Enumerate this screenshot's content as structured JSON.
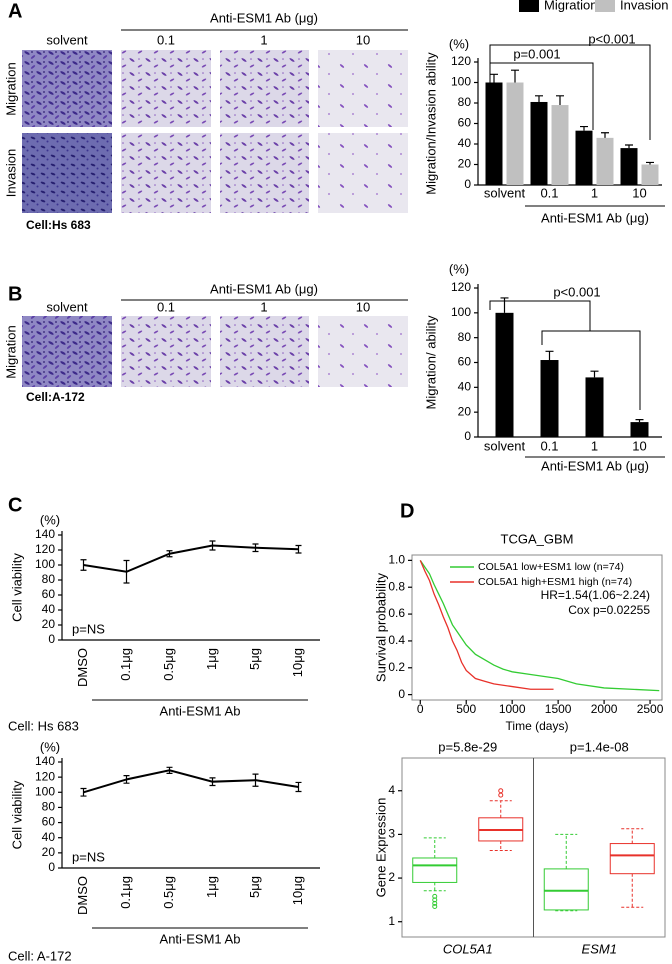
{
  "figure": {
    "panel_labels": [
      "A",
      "B",
      "C",
      "D"
    ],
    "a": {
      "header": "Anti-ESM1 Ab (μg)",
      "columns": [
        "solvent",
        "0.1",
        "1",
        "10"
      ],
      "rows": [
        "Migration",
        "Invasion"
      ],
      "cell": "Cell:Hs 683"
    },
    "b": {
      "header": "Anti-ESM1 Ab (μg)",
      "columns": [
        "solvent",
        "0.1",
        "1",
        "10"
      ],
      "rows": [
        "Migration"
      ],
      "cell": "Cell:A-172"
    }
  },
  "chart_data": [
    {
      "type": "bar",
      "unit": "(%)",
      "ylabel": "Migration/Invasion ability",
      "xlabel": "Anti-ESM1 Ab (μg)",
      "categories": [
        "solvent",
        "0.1",
        "1",
        "10"
      ],
      "series": [
        {
          "name": "Migration",
          "color": "#000000",
          "values": [
            100,
            81,
            53,
            36
          ],
          "errors": [
            8,
            6,
            4,
            3
          ]
        },
        {
          "name": "Invasion",
          "color": "#c0c0c0",
          "values": [
            100,
            78,
            46,
            20
          ],
          "errors": [
            12,
            9,
            5,
            2
          ]
        }
      ],
      "ylim": [
        0,
        120
      ],
      "yticks": [
        0,
        20,
        40,
        60,
        80,
        100,
        120
      ],
      "annotations": [
        "p=0.001",
        "p<0.001"
      ],
      "legend": "top"
    },
    {
      "type": "bar",
      "unit": "(%)",
      "ylabel": "Migration/ ability",
      "xlabel": "Anti-ESM1 Ab (μg)",
      "categories": [
        "solvent",
        "0.1",
        "1",
        "10"
      ],
      "series": [
        {
          "color": "#000000",
          "values": [
            100,
            62,
            48,
            12
          ],
          "errors": [
            12,
            7,
            5,
            2
          ]
        }
      ],
      "ylim": [
        0,
        120
      ],
      "yticks": [
        0,
        20,
        40,
        60,
        80,
        100,
        120
      ],
      "annotations": [
        "p<0.001"
      ]
    },
    {
      "type": "line",
      "unit": "(%)",
      "ylabel": "Cell viability",
      "xlabel": "Anti-ESM1 Ab",
      "cell_label": "Cell: Hs 683",
      "categories": [
        "DMSO",
        "0.1μg",
        "0.5μg",
        "1μg",
        "5μg",
        "10μg"
      ],
      "series": [
        {
          "color": "#000000",
          "values": [
            100,
            91,
            115,
            126,
            123,
            121
          ],
          "errors": [
            7,
            15,
            4,
            6,
            5,
            5
          ]
        }
      ],
      "ylim": [
        0,
        140
      ],
      "yticks": [
        0,
        20,
        40,
        60,
        80,
        100,
        120,
        140
      ],
      "annotations": [
        "p=NS"
      ]
    },
    {
      "type": "line",
      "unit": "(%)",
      "ylabel": "Cell viability",
      "xlabel": "Anti-ESM1 Ab",
      "cell_label": "Cell: A-172",
      "categories": [
        "DMSO",
        "0.1μg",
        "0.5μg",
        "1μg",
        "5μg",
        "10μg"
      ],
      "series": [
        {
          "color": "#000000",
          "values": [
            100,
            117,
            129,
            114,
            116,
            107
          ],
          "errors": [
            5,
            5,
            4,
            5,
            8,
            6
          ]
        }
      ],
      "ylim": [
        0,
        140
      ],
      "yticks": [
        0,
        20,
        40,
        60,
        80,
        100,
        120,
        140
      ],
      "annotations": [
        "p=NS"
      ]
    },
    {
      "type": "survival",
      "title": "TCGA_GBM",
      "xlabel": "Time (days)",
      "ylabel": "Survival probability",
      "series": [
        {
          "name": "COL5A1 low+ESM1 low (n=74)",
          "color": "#33cc33",
          "x": [
            0,
            50,
            100,
            150,
            200,
            250,
            300,
            350,
            400,
            450,
            500,
            600,
            700,
            800,
            900,
            1000,
            1200,
            1500,
            1700,
            2000,
            2600
          ],
          "values": [
            1,
            0.95,
            0.9,
            0.82,
            0.75,
            0.68,
            0.6,
            0.52,
            0.47,
            0.42,
            0.37,
            0.3,
            0.26,
            0.22,
            0.19,
            0.17,
            0.15,
            0.12,
            0.08,
            0.05,
            0.03
          ]
        },
        {
          "name": "COL5A1 high+ESM1 high (n=74)",
          "color": "#e8312a",
          "x": [
            0,
            50,
            100,
            150,
            200,
            250,
            300,
            350,
            400,
            450,
            500,
            600,
            700,
            800,
            1000,
            1200,
            1450
          ],
          "values": [
            1,
            0.92,
            0.85,
            0.75,
            0.67,
            0.58,
            0.5,
            0.4,
            0.33,
            0.24,
            0.18,
            0.12,
            0.1,
            0.08,
            0.06,
            0.04,
            0.04
          ]
        }
      ],
      "xlim": [
        -90,
        2630
      ],
      "ylim": [
        -0.04,
        1.04
      ],
      "xticks": [
        0,
        500,
        1000,
        1500,
        2000,
        2500
      ],
      "yticks": [
        0,
        0.2,
        0.4,
        0.6,
        0.8,
        {
          "value": 1,
          "label": "1.0"
        }
      ],
      "annotations": [
        "HR=1.54(1.06~2.24)",
        "Cox p=0.02255"
      ],
      "legend": "top"
    },
    {
      "type": "box",
      "ylabel": "Gene Expression",
      "categories": [
        "COL5A1",
        "ESM1"
      ],
      "series": [
        {
          "color": "#33cc33",
          "min": [
            1.71,
            1.25
          ],
          "q1": [
            1.9,
            1.27
          ],
          "median": [
            2.29,
            1.71
          ],
          "q3": [
            2.46,
            2.21
          ],
          "max": [
            2.92,
            3.0
          ],
          "outliers": [
            [
              1.35,
              1.42,
              1.5,
              1.58
            ],
            []
          ]
        },
        {
          "color": "#e8312a",
          "min": [
            2.63,
            1.33
          ],
          "q1": [
            2.85,
            2.1
          ],
          "median": [
            3.1,
            2.52
          ],
          "q3": [
            3.38,
            2.79
          ],
          "max": [
            3.77,
            3.13
          ],
          "outliers": [
            [
              3.9,
              4.0
            ],
            []
          ]
        }
      ],
      "ylim": [
        0.65,
        4.75
      ],
      "yticks": [
        1,
        2,
        3,
        4
      ],
      "annotations": [
        "p=5.8e-29",
        "p=1.4e-08"
      ]
    }
  ]
}
